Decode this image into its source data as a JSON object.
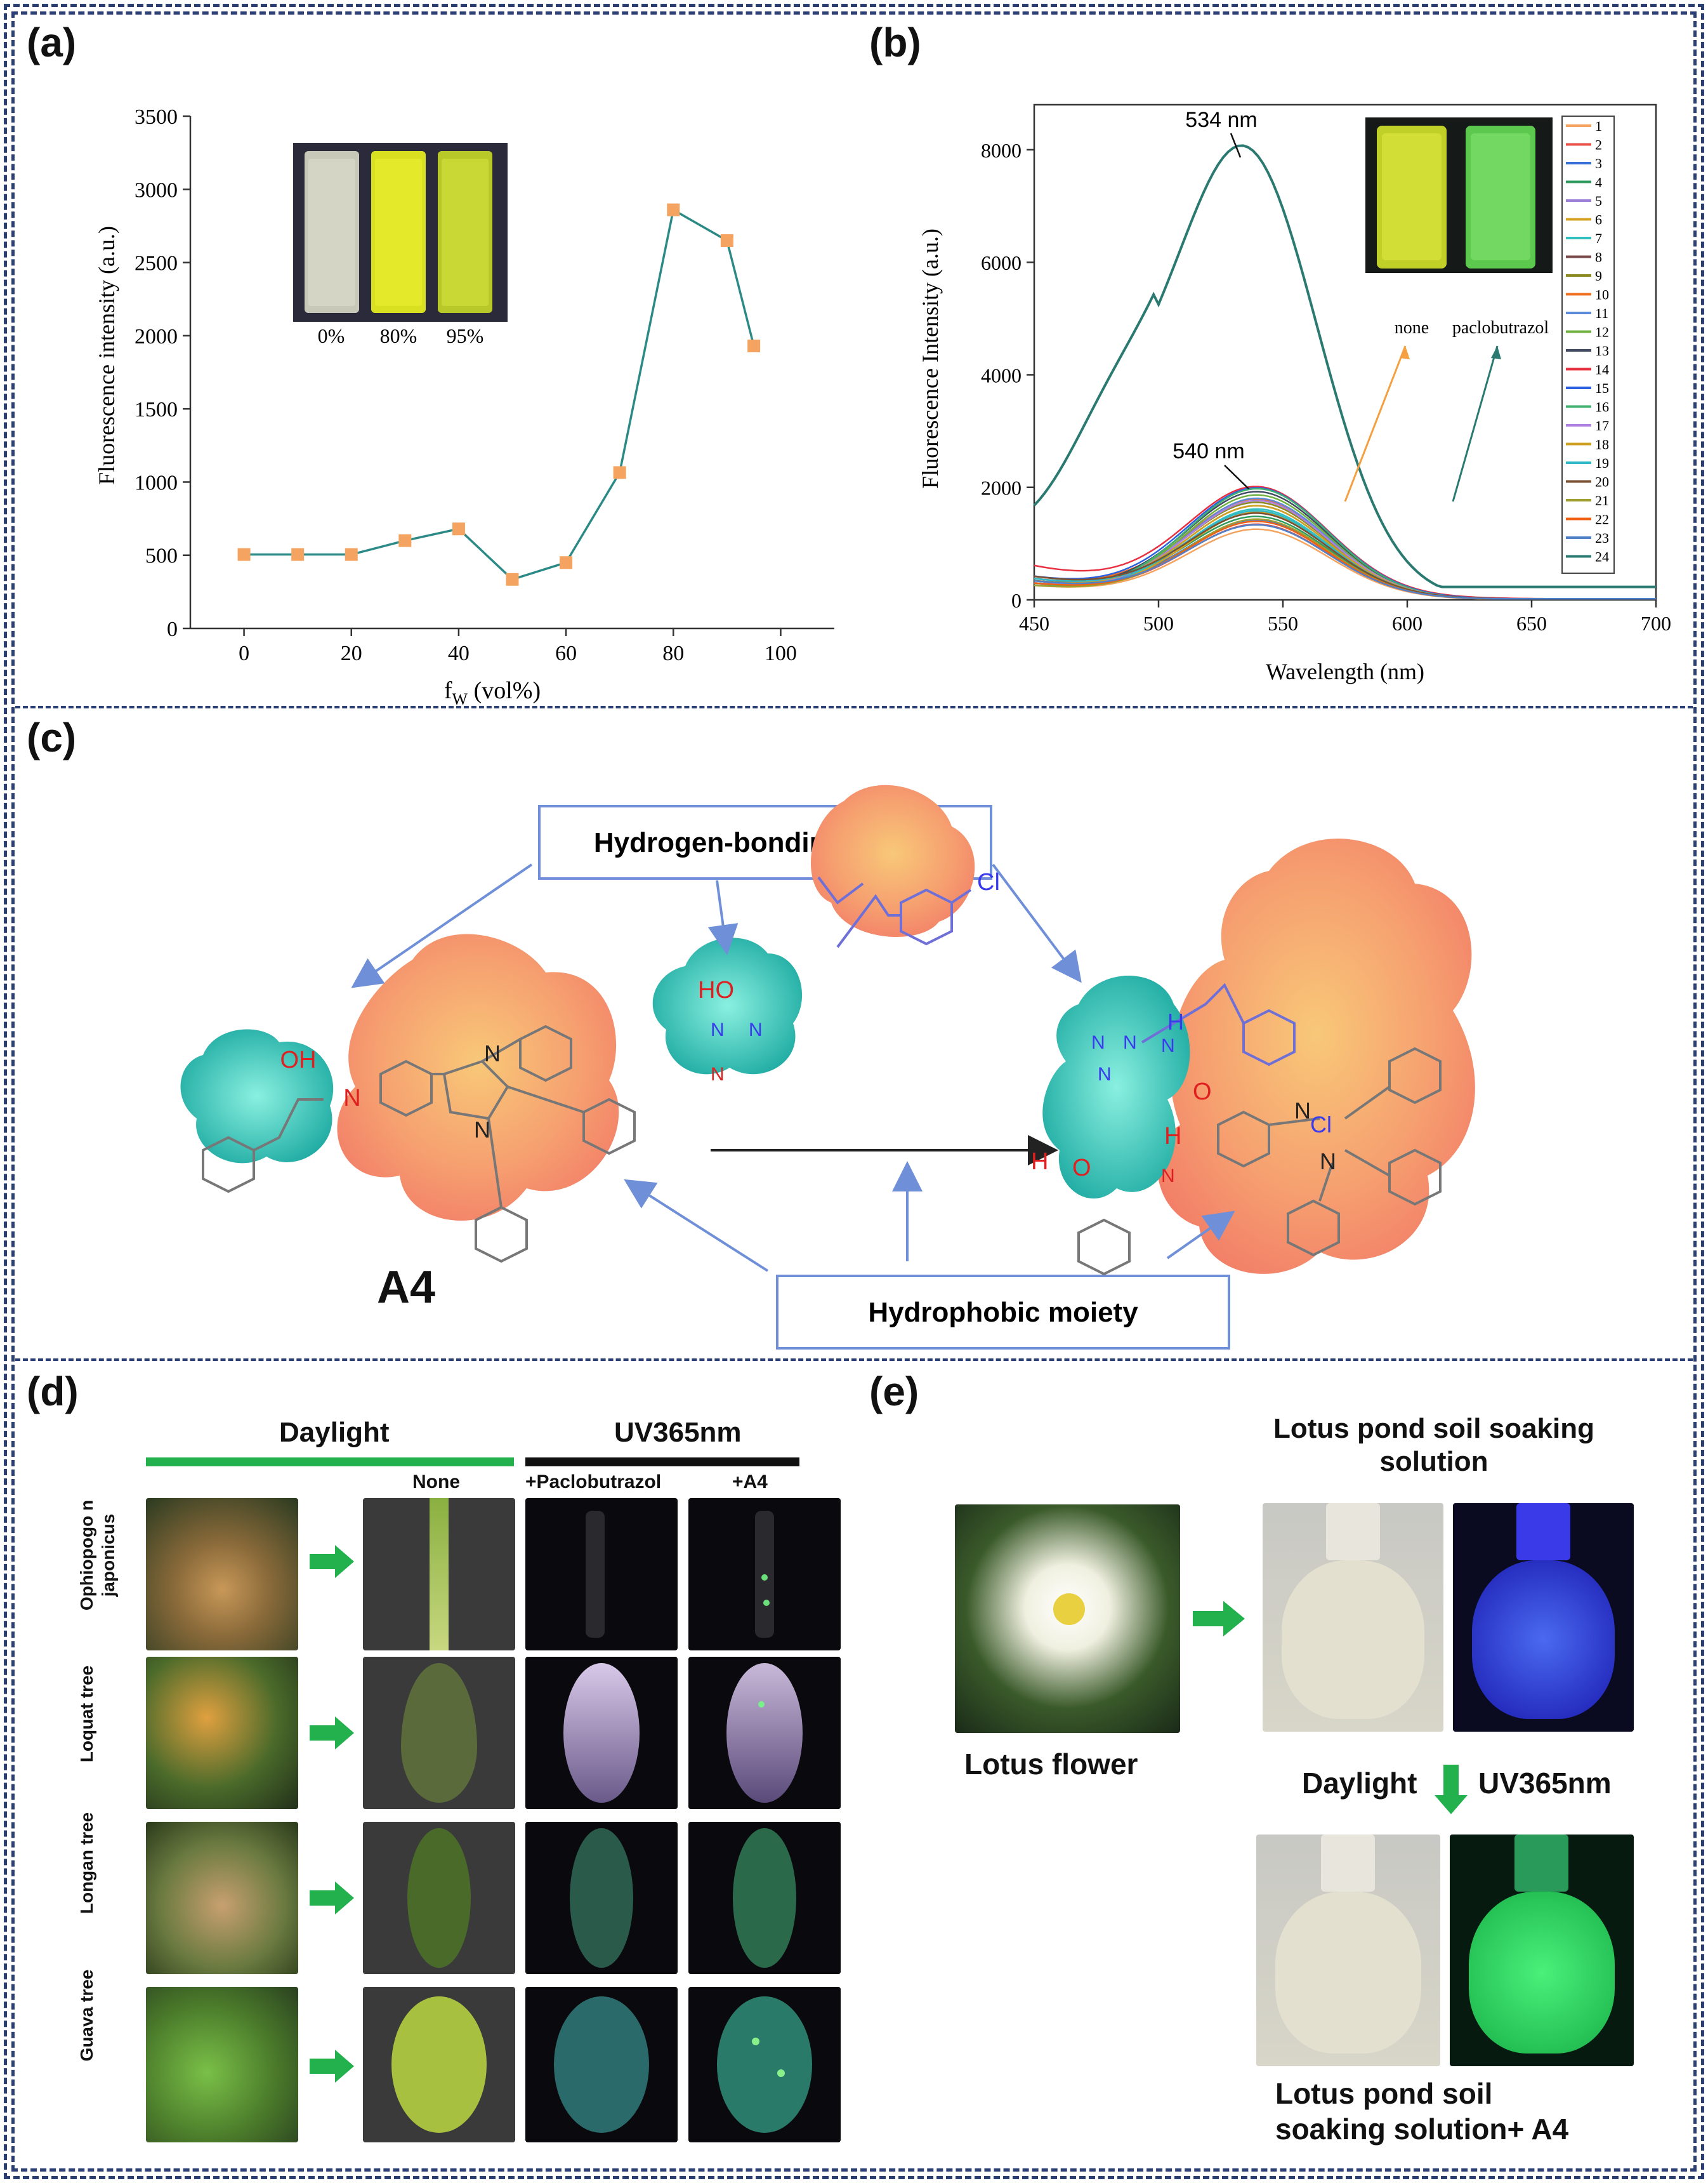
{
  "panels": {
    "a": "(a)",
    "b": "(b)",
    "c": "(c)",
    "d": "(d)",
    "e": "(e)"
  },
  "colors": {
    "frame": "#2b3f73",
    "line_a": "#2b8a86",
    "marker_a": "#f4a460",
    "green_arrow": "#22b14c",
    "blue_arrow": "#6f8fd8"
  },
  "chart_data": [
    {
      "type": "line",
      "title": "",
      "xlabel": "f",
      "xlabel_sub": "W",
      "xlabel_rest": " (vol%)",
      "ylabel": "Fluorescence intensity (a.u.)",
      "x": [
        0,
        10,
        20,
        30,
        40,
        50,
        60,
        70,
        80,
        90,
        95
      ],
      "y": [
        505,
        505,
        505,
        600,
        680,
        335,
        450,
        1065,
        2860,
        2650,
        1930
      ],
      "xlim": [
        -10,
        110
      ],
      "ylim": [
        0,
        3500
      ],
      "xticks": [
        "0",
        "20",
        "40",
        "60",
        "80",
        "100"
      ],
      "yticks": [
        "0",
        "500",
        "1000",
        "1500",
        "2000",
        "2500",
        "3000",
        "3500"
      ],
      "inset_labels": [
        "0%",
        "80%",
        "95%"
      ]
    },
    {
      "type": "line",
      "xlabel": "Wavelength (nm)",
      "ylabel": "Fluorescence Intensity (a.u.)",
      "xlim": [
        450,
        700
      ],
      "ylim": [
        0,
        8800
      ],
      "xticks": [
        "450",
        "500",
        "550",
        "600",
        "650",
        "700"
      ],
      "yticks": [
        "0",
        "2000",
        "4000",
        "6000",
        "8000"
      ],
      "annotations": [
        "534 nm",
        "540 nm"
      ],
      "inset_labels": [
        "none",
        "paclobutrazol"
      ],
      "legend": [
        "1",
        "2",
        "3",
        "4",
        "5",
        "6",
        "7",
        "8",
        "9",
        "10",
        "11",
        "12",
        "13",
        "14",
        "15",
        "16",
        "17",
        "18",
        "19",
        "20",
        "21",
        "22",
        "23",
        "24"
      ],
      "legend_colors": [
        "#f4a460",
        "#e8504a",
        "#3a6fd8",
        "#2e9a5e",
        "#9b7fd6",
        "#d4a020",
        "#30c0c0",
        "#7a4a4a",
        "#8a8a20",
        "#f07020",
        "#5a8ad8",
        "#70b040",
        "#404a60",
        "#e83040",
        "#2a60e0",
        "#40b070",
        "#b080e0",
        "#d0a020",
        "#30b8c8",
        "#7a5030",
        "#a0a030",
        "#f06010",
        "#5080c8",
        "#2a7a72"
      ],
      "series_peak_540": [
        1200,
        1280,
        1350,
        1400,
        1450,
        1500,
        1550,
        1600,
        1650,
        1700,
        1750,
        1800,
        1850,
        1880,
        1900,
        1920,
        1700,
        1600,
        1500,
        1450,
        1380,
        1330,
        1260,
        8030
      ]
    }
  ],
  "panel_c": {
    "label_top": "Hydrogen-bonding moirty",
    "label_bottom": "Hydrophobic moiety",
    "compound": "A4",
    "atoms": [
      "OH",
      "N",
      "N",
      "N",
      "HO",
      "N",
      "N",
      "N",
      "Cl",
      "H",
      "N",
      "N",
      "N",
      "N",
      "H",
      "O",
      "O",
      "H",
      "N",
      "N",
      "Cl",
      "N"
    ]
  },
  "panel_d": {
    "header_left": "Daylight",
    "header_right": "UV365nm",
    "col_labels": [
      "None",
      "+Paclobutrazol",
      "+A4"
    ],
    "rows": [
      "Ophiopogo n japonicus",
      "Loquat tree",
      "Longan tree",
      "Guava tree"
    ]
  },
  "panel_e": {
    "title": "Lotus pond soil soaking solution",
    "lotus_label": "Lotus flower",
    "daylight": "Daylight",
    "uv": "UV365nm",
    "bottom_title": "Lotus pond soil soaking solution+ A4"
  }
}
